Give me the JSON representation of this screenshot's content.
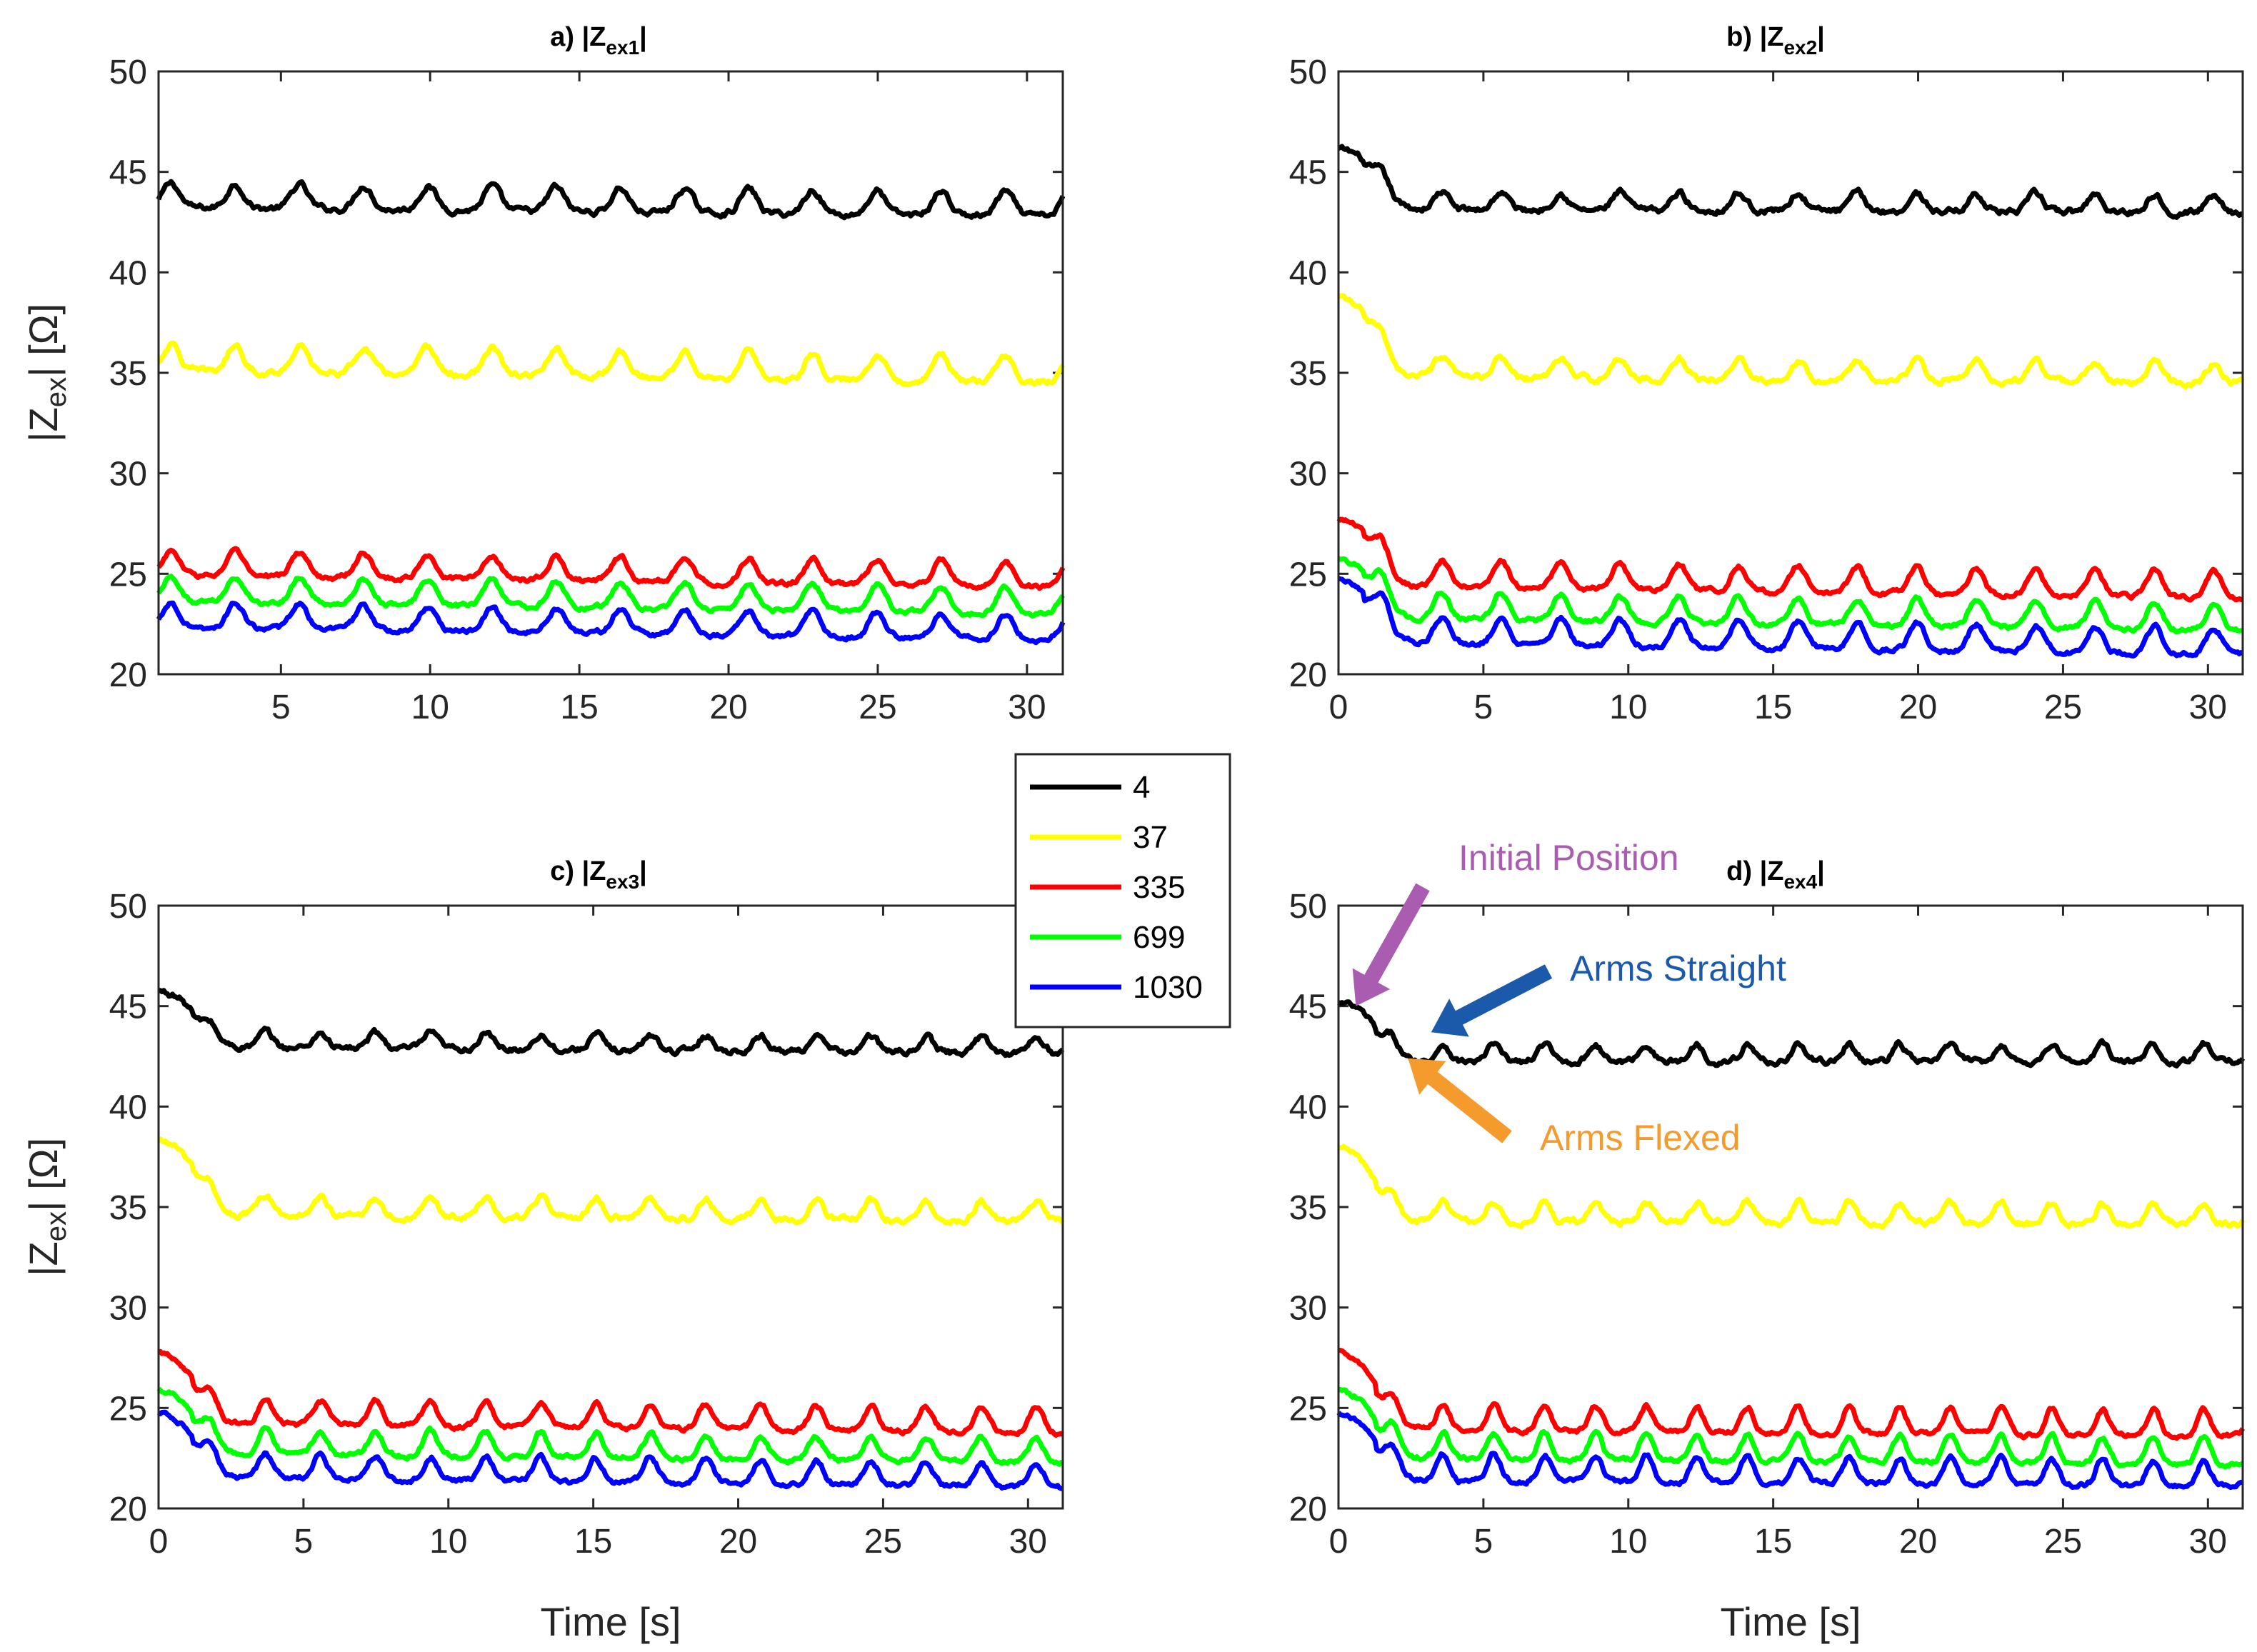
{
  "chart_data": {
    "type": "line",
    "legend_position": "center",
    "series_names": [
      "4",
      "37",
      "335",
      "699",
      "1030"
    ],
    "series_colors": [
      "#000000",
      "#ffff00",
      "#ff0000",
      "#00ff00",
      "#0000ff"
    ],
    "xlabel": "Time [s]",
    "ylabel": "|Z",
    "ylabel_sub": "ex",
    "ylabel_tail": "| [Ω]",
    "x_ticks": [
      "0",
      "5",
      "10",
      "15",
      "20",
      "25",
      "30"
    ],
    "y_ticks": [
      "20",
      "25",
      "30",
      "35",
      "40",
      "45",
      "50"
    ],
    "ylim": [
      20,
      50
    ],
    "panels": [
      {
        "id": "a",
        "title_prefix": "a) |Z",
        "title_sub": "ex1",
        "title_suffix": "|",
        "xlim": [
          0.9,
          31.2
        ],
        "show_zero_tick": false,
        "t0": 0.9,
        "initial_extra": [
          0,
          0,
          0,
          0,
          0
        ],
        "oscillation": [
          {
            "start": 1.0,
            "period": 2.15,
            "phase": 0.0
          }
        ],
        "series": [
          {
            "name": "4",
            "base": 43.6,
            "amp": 1.1,
            "trend": -0.015,
            "noise": 0.25
          },
          {
            "name": "37",
            "base": 35.5,
            "amp": 1.2,
            "trend": -0.02,
            "noise": 0.25
          },
          {
            "name": "335",
            "base": 25.3,
            "amp": 1.1,
            "trend": -0.02,
            "noise": 0.2
          },
          {
            "name": "699",
            "base": 24.0,
            "amp": 1.2,
            "trend": -0.02,
            "noise": 0.2
          },
          {
            "name": "1030",
            "base": 22.7,
            "amp": 1.1,
            "trend": -0.02,
            "noise": 0.2
          }
        ]
      },
      {
        "id": "b",
        "title_prefix": "b) |Z",
        "title_sub": "ex2",
        "title_suffix": "|",
        "xlim": [
          0,
          31.2
        ],
        "show_zero_tick": true,
        "t0": 0.0,
        "initial_extra": [
          2.8,
          3.7,
          3.0,
          2.6,
          2.8
        ],
        "oscillation": [
          {
            "start": 1.2,
            "period": 2.05,
            "phase": 0.0
          }
        ],
        "series": [
          {
            "name": "4",
            "base": 43.4,
            "amp": 0.8,
            "trend": -0.005,
            "noise": 0.25
          },
          {
            "name": "37",
            "base": 35.1,
            "amp": 0.9,
            "trend": -0.01,
            "noise": 0.25
          },
          {
            "name": "335",
            "base": 24.8,
            "amp": 1.2,
            "trend": -0.02,
            "noise": 0.2
          },
          {
            "name": "699",
            "base": 23.2,
            "amp": 1.2,
            "trend": -0.02,
            "noise": 0.2
          },
          {
            "name": "1030",
            "base": 22.0,
            "amp": 1.2,
            "trend": -0.02,
            "noise": 0.2
          }
        ]
      },
      {
        "id": "c",
        "title_prefix": "c) |Z",
        "title_sub": "ex3",
        "title_suffix": "|",
        "xlim": [
          0,
          31.2
        ],
        "show_zero_tick": true,
        "t0": 0.0,
        "initial_extra": [
          2.6,
          3.5,
          3.2,
          2.9,
          2.9
        ],
        "oscillation": [
          {
            "start": 1.5,
            "period": 1.9,
            "phase": 0.0
          }
        ],
        "series": [
          {
            "name": "4",
            "base": 43.2,
            "amp": 0.7,
            "trend": -0.01,
            "noise": 0.25
          },
          {
            "name": "37",
            "base": 34.9,
            "amp": 0.9,
            "trend": -0.01,
            "noise": 0.25
          },
          {
            "name": "335",
            "base": 24.6,
            "amp": 1.1,
            "trend": -0.015,
            "noise": 0.2
          },
          {
            "name": "699",
            "base": 23.1,
            "amp": 1.1,
            "trend": -0.015,
            "noise": 0.2
          },
          {
            "name": "1030",
            "base": 21.9,
            "amp": 1.1,
            "trend": -0.015,
            "noise": 0.2
          }
        ]
      },
      {
        "id": "d",
        "title_prefix": "d) |Z",
        "title_sub": "ex4",
        "title_suffix": "|",
        "xlim": [
          0,
          31.2
        ],
        "show_zero_tick": true,
        "t0": 0.0,
        "initial_extra": [
          2.7,
          3.4,
          3.6,
          3.0,
          3.0
        ],
        "oscillation": [
          {
            "start": 1.6,
            "period": 1.75,
            "phase": 0.0
          }
        ],
        "series": [
          {
            "name": "4",
            "base": 42.5,
            "amp": 0.8,
            "trend": 0.0,
            "noise": 0.25
          },
          {
            "name": "37",
            "base": 34.6,
            "amp": 0.9,
            "trend": -0.005,
            "noise": 0.25
          },
          {
            "name": "335",
            "base": 24.3,
            "amp": 1.2,
            "trend": -0.01,
            "noise": 0.2
          },
          {
            "name": "699",
            "base": 22.9,
            "amp": 1.2,
            "trend": -0.01,
            "noise": 0.2
          },
          {
            "name": "1030",
            "base": 21.8,
            "amp": 1.2,
            "trend": -0.01,
            "noise": 0.2
          }
        ],
        "annotations": [
          {
            "text": "Initial Position",
            "color": "#a95cb0",
            "point_x": 0.6,
            "point_y": 45.0
          },
          {
            "text": "Arms Straight",
            "color": "#1b5aab",
            "point_x": 3.2,
            "point_y": 43.7
          },
          {
            "text": "Arms Flexed",
            "color": "#f59a2d",
            "point_x": 2.4,
            "point_y": 42.4
          }
        ]
      }
    ]
  }
}
